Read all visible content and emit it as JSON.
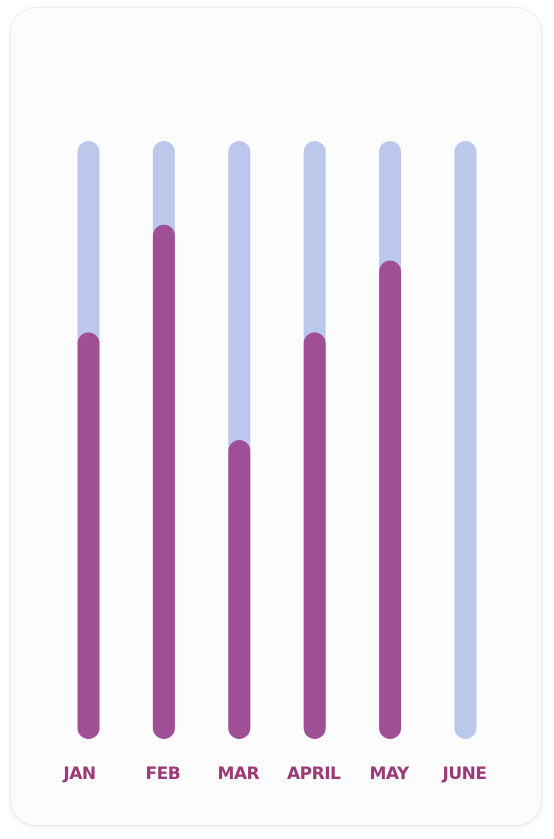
{
  "chart_data": {
    "type": "bar",
    "categories": [
      "JAN",
      "FEB",
      "MAR",
      "APRIL",
      "MAY",
      "JUNE"
    ],
    "values": [
      68,
      86,
      50,
      68,
      80,
      0
    ],
    "ylim": [
      0,
      100
    ],
    "grid": false,
    "colors": {
      "fill": "#9e4f96",
      "track": "#bbc8ec",
      "label": "#9c3a77",
      "card": "#fcfcfd"
    }
  }
}
